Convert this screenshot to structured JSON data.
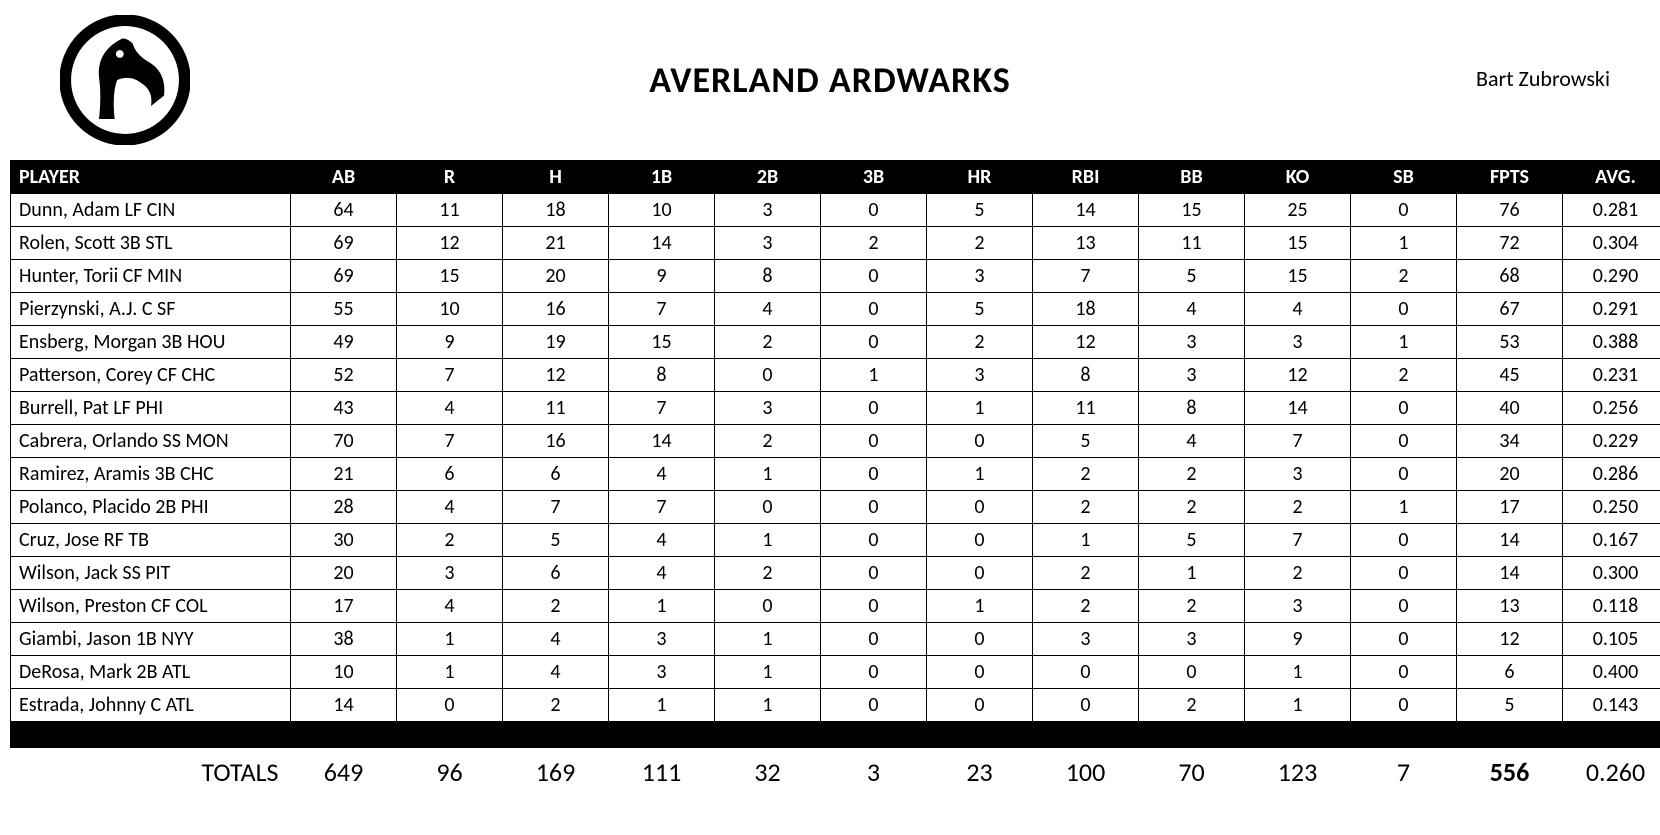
{
  "team_name": "AVERLAND ARDWARKS",
  "owner": "Bart Zubrowski",
  "columns": [
    "PLAYER",
    "AB",
    "R",
    "H",
    "1B",
    "2B",
    "3B",
    "HR",
    "RBI",
    "BB",
    "KO",
    "SB",
    "FPTS",
    "AVG."
  ],
  "rows": [
    [
      "Dunn, Adam LF CIN",
      "64",
      "11",
      "18",
      "10",
      "3",
      "0",
      "5",
      "14",
      "15",
      "25",
      "0",
      "76",
      "0.281"
    ],
    [
      "Rolen, Scott 3B STL",
      "69",
      "12",
      "21",
      "14",
      "3",
      "2",
      "2",
      "13",
      "11",
      "15",
      "1",
      "72",
      "0.304"
    ],
    [
      "Hunter, Torii CF MIN",
      "69",
      "15",
      "20",
      "9",
      "8",
      "0",
      "3",
      "7",
      "5",
      "15",
      "2",
      "68",
      "0.290"
    ],
    [
      "Pierzynski, A.J. C SF",
      "55",
      "10",
      "16",
      "7",
      "4",
      "0",
      "5",
      "18",
      "4",
      "4",
      "0",
      "67",
      "0.291"
    ],
    [
      "Ensberg, Morgan 3B HOU",
      "49",
      "9",
      "19",
      "15",
      "2",
      "0",
      "2",
      "12",
      "3",
      "3",
      "1",
      "53",
      "0.388"
    ],
    [
      "Patterson, Corey CF CHC",
      "52",
      "7",
      "12",
      "8",
      "0",
      "1",
      "3",
      "8",
      "3",
      "12",
      "2",
      "45",
      "0.231"
    ],
    [
      "Burrell, Pat LF PHI",
      "43",
      "4",
      "11",
      "7",
      "3",
      "0",
      "1",
      "11",
      "8",
      "14",
      "0",
      "40",
      "0.256"
    ],
    [
      "Cabrera, Orlando SS MON",
      "70",
      "7",
      "16",
      "14",
      "2",
      "0",
      "0",
      "5",
      "4",
      "7",
      "0",
      "34",
      "0.229"
    ],
    [
      "Ramirez, Aramis 3B CHC",
      "21",
      "6",
      "6",
      "4",
      "1",
      "0",
      "1",
      "2",
      "2",
      "3",
      "0",
      "20",
      "0.286"
    ],
    [
      "Polanco, Placido 2B PHI",
      "28",
      "4",
      "7",
      "7",
      "0",
      "0",
      "0",
      "2",
      "2",
      "2",
      "1",
      "17",
      "0.250"
    ],
    [
      "Cruz, Jose RF TB",
      "30",
      "2",
      "5",
      "4",
      "1",
      "0",
      "0",
      "1",
      "5",
      "7",
      "0",
      "14",
      "0.167"
    ],
    [
      "Wilson, Jack SS PIT",
      "20",
      "3",
      "6",
      "4",
      "2",
      "0",
      "0",
      "2",
      "1",
      "2",
      "0",
      "14",
      "0.300"
    ],
    [
      "Wilson, Preston CF COL",
      "17",
      "4",
      "2",
      "1",
      "0",
      "0",
      "1",
      "2",
      "2",
      "3",
      "0",
      "13",
      "0.118"
    ],
    [
      "Giambi, Jason 1B NYY",
      "38",
      "1",
      "4",
      "3",
      "1",
      "0",
      "0",
      "3",
      "3",
      "9",
      "0",
      "12",
      "0.105"
    ],
    [
      "DeRosa, Mark 2B ATL",
      "10",
      "1",
      "4",
      "3",
      "1",
      "0",
      "0",
      "0",
      "0",
      "1",
      "0",
      "6",
      "0.400"
    ],
    [
      "Estrada, Johnny C ATL",
      "14",
      "0",
      "2",
      "1",
      "1",
      "0",
      "0",
      "0",
      "2",
      "1",
      "0",
      "5",
      "0.143"
    ]
  ],
  "totals_label": "TOTALS",
  "totals": [
    "649",
    "96",
    "169",
    "111",
    "32",
    "3",
    "23",
    "100",
    "70",
    "123",
    "7",
    "556",
    "0.260"
  ]
}
